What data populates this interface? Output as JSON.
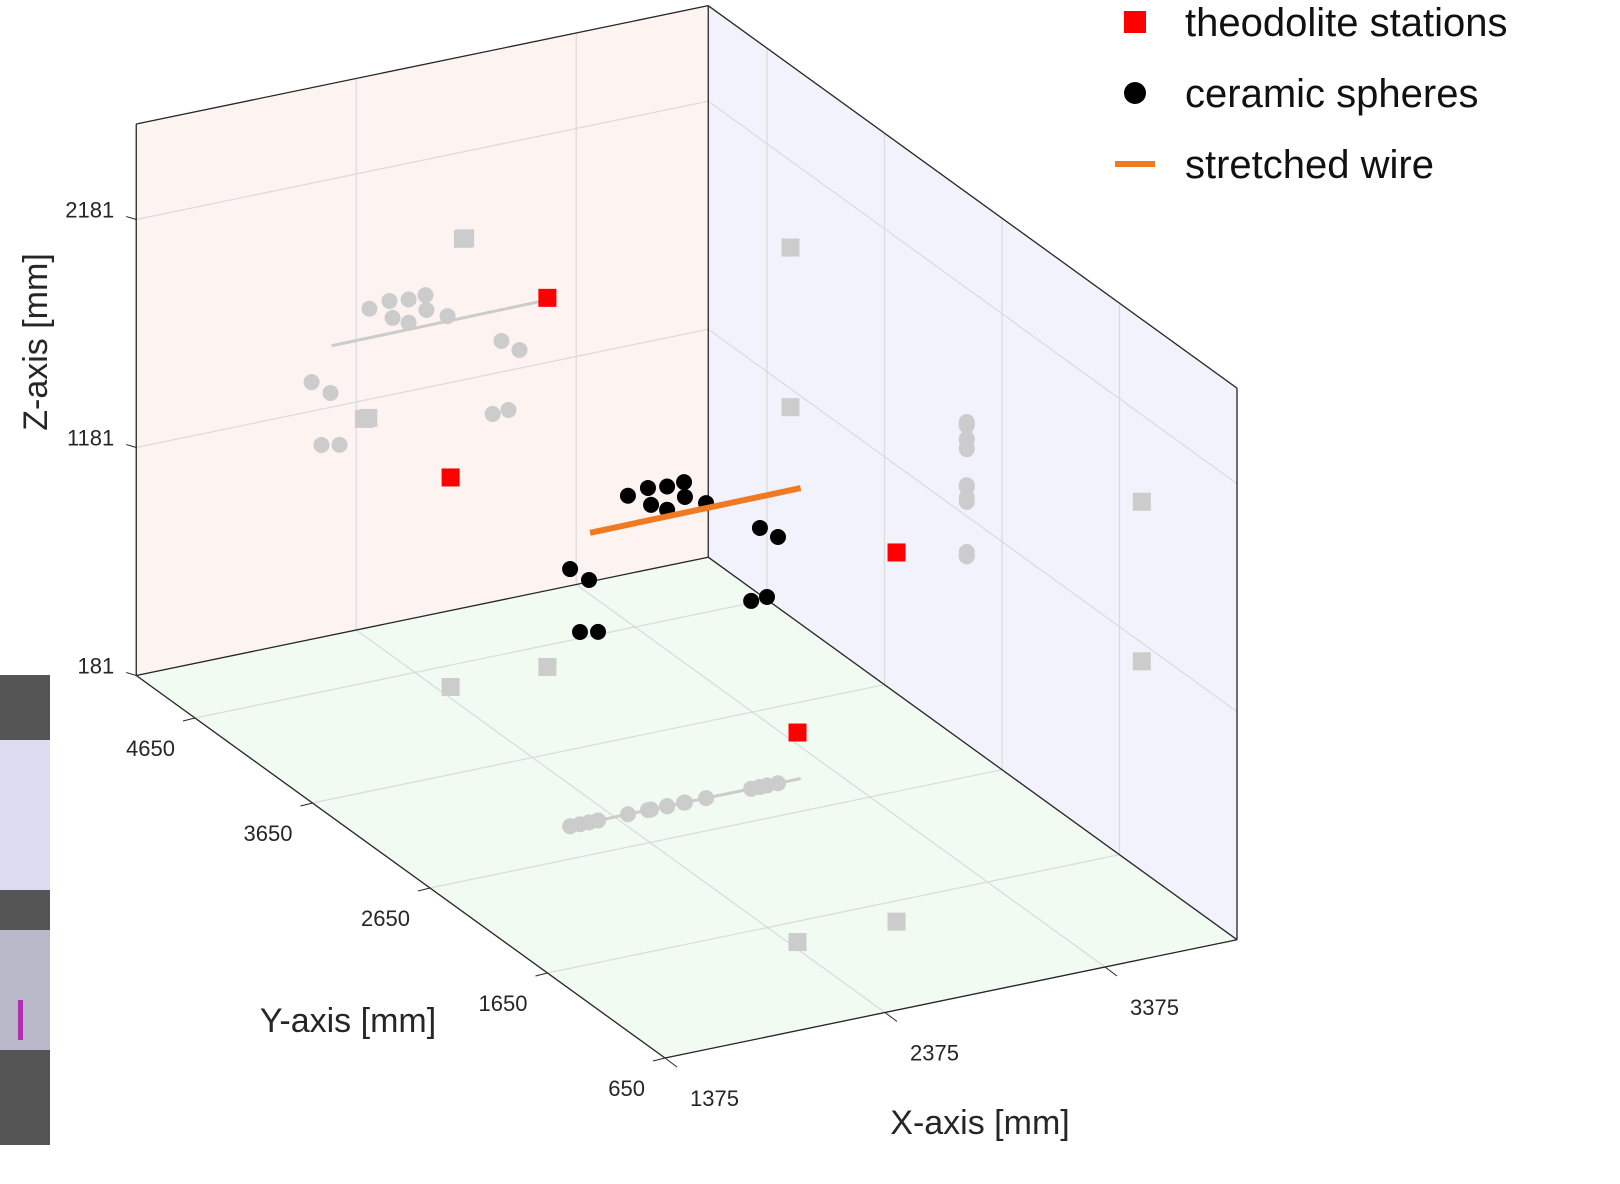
{
  "chart_data": {
    "type": "scatter3d",
    "xlabel": "X-axis [mm]",
    "ylabel": "Y-axis [mm]",
    "zlabel": "Z-axis [mm]",
    "xlim": [
      1375,
      3975
    ],
    "ylim": [
      650,
      5150
    ],
    "zlim": [
      181,
      2600
    ],
    "xticks": [
      1375,
      2375,
      3375
    ],
    "yticks": [
      650,
      1650,
      2650,
      3650,
      4650
    ],
    "zticks": [
      181,
      1181,
      2181
    ],
    "grid": true,
    "legend": "upper right",
    "shadow_color": "#cccccc",
    "series": [
      {
        "name": "theodolite stations",
        "color": "#ff0000",
        "marker": "square",
        "x": [
          2870,
          2430,
          2860,
          2410
        ],
        "y": [
          4450,
          4450,
          1460,
          1460
        ],
        "z": [
          1800,
          1100,
          1800,
          1100
        ]
      },
      {
        "name": "ceramic spheres",
        "color": "#000000",
        "marker": "circle",
        "x": [
          2435,
          2526,
          2613,
          2690,
          2540,
          2613,
          2694,
          2790,
          3035,
          3117,
          2172,
          2258,
          2217,
          2299,
          2995,
          3067
        ],
        "y": [
          2950,
          2950,
          2950,
          2950,
          2950,
          2950,
          2950,
          2950,
          2950,
          2950,
          2950,
          2950,
          2950,
          2950,
          2950,
          2950
        ],
        "z": [
          1578,
          1594,
          1583,
          1587,
          1517,
          1481,
          1521,
          1475,
          1317,
          1261,
          1309,
          1244,
          1024,
          1008,
          1005,
          1008
        ]
      },
      {
        "name": "stretched wire",
        "color": "#f07a22",
        "marker": "line",
        "x": [
          2263,
          3220
        ],
        "y": [
          2950,
          2950
        ],
        "z": [
          1450,
          1455
        ]
      }
    ]
  }
}
